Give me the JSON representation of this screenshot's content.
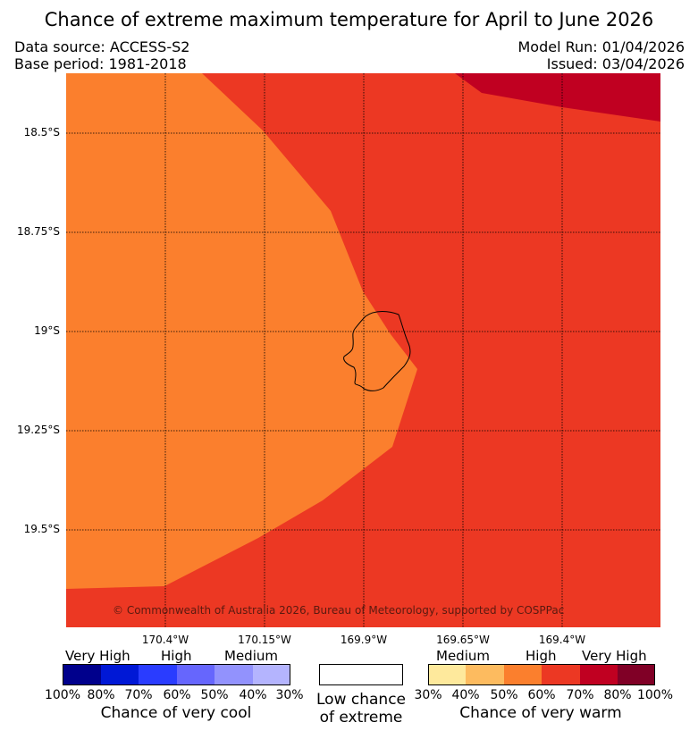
{
  "title": "Chance of extreme maximum temperature for April to June 2026",
  "meta": {
    "data_source": "Data source: ACCESS-S2",
    "base_period": "Base period: 1981-2018",
    "model_run": "Model Run: 01/04/2026",
    "issued": "Issued: 03/04/2026"
  },
  "map": {
    "lat_labels": [
      "18.5°S",
      "18.75°S",
      "19°S",
      "19.25°S",
      "19.5°S"
    ],
    "lon_labels": [
      "170.4°W",
      "170.15°W",
      "169.9°W",
      "169.65°W",
      "169.4°W"
    ],
    "copyright": "© Commonwealth of Australia 2026, Bureau of Meteorology, supported by COSPPac",
    "zone_colors": {
      "high_50_60": "#fb7f2d",
      "high_60_70": "#ec3823",
      "very_high_70_80": "#c00021",
      "coast": "#000000"
    }
  },
  "legend": {
    "cool": {
      "categories": [
        "Very High",
        "High",
        "Medium"
      ],
      "percentages": [
        "100%",
        "80%",
        "70%",
        "60%",
        "50%",
        "40%",
        "30%"
      ],
      "colors": [
        "#00008c",
        "#0018d6",
        "#2a3cff",
        "#6666fd",
        "#9292fd",
        "#b4b4fe"
      ],
      "caption": "Chance of very cool"
    },
    "neutral": {
      "line1": "Low chance",
      "line2": "of extreme",
      "color": "#ffffff"
    },
    "warm": {
      "categories": [
        "Medium",
        "High",
        "Very High"
      ],
      "percentages": [
        "30%",
        "40%",
        "50%",
        "60%",
        "70%",
        "80%",
        "100%"
      ],
      "colors": [
        "#fee99c",
        "#fdbb5f",
        "#fb7f2d",
        "#ec3823",
        "#c00021",
        "#800026"
      ],
      "caption": "Chance of very warm"
    }
  }
}
